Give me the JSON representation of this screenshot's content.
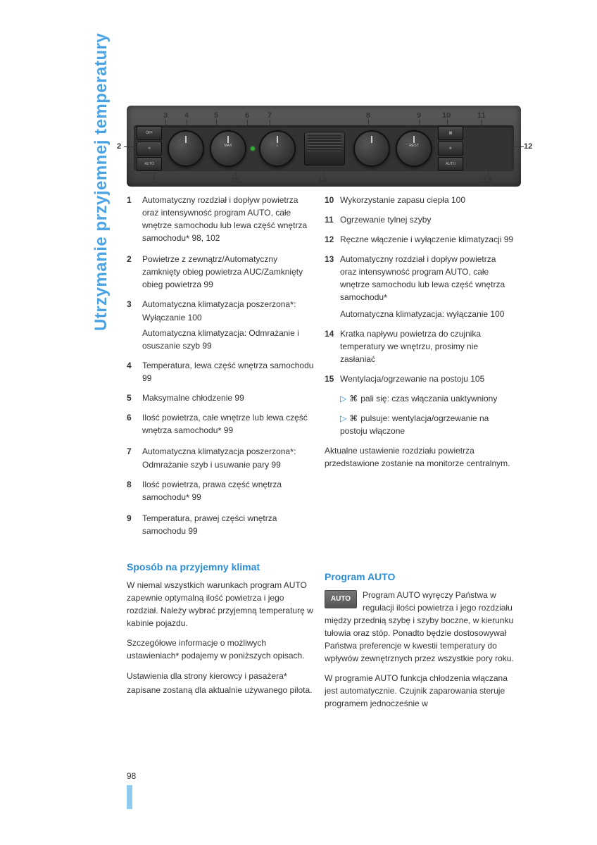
{
  "side_title": "Utrzymanie przyjemnej temperatury",
  "page_number": "98",
  "diagram": {
    "callouts_top": [
      "3",
      "4",
      "5",
      "6",
      "7",
      "8",
      "9",
      "10",
      "11"
    ],
    "callouts_left": [
      "2"
    ],
    "callouts_right": [
      "12"
    ],
    "callouts_bottom": [
      "1",
      "15",
      "14",
      "13"
    ],
    "auto_btn": "AUTO",
    "off_btn": "OFF",
    "max_label": "MAX",
    "rest_label": "REST"
  },
  "left_items": [
    {
      "n": "1",
      "t": "Automatyczny rozdział i dopływ powietrza oraz intensywność program AUTO, całe wnętrze samochodu lub lewa część wnętrza samochodu",
      "star": true,
      "refs": "  98, 102"
    },
    {
      "n": "2",
      "t": "Powietrze z zewnątrz/Automatyczny zamknięty obieg powietrza AUC/Zamknięty obieg powietrza",
      "refs": "  99"
    },
    {
      "n": "3",
      "t": "Automatyczna klimatyzacja poszerzona",
      "star": true,
      "after": ": Wyłączanie  100",
      "extra": "Automatyczna klimatyzacja: Odmrażanie i osuszanie szyb  99"
    },
    {
      "n": "4",
      "t": "Temperatura, lewa część wnętrza samochodu",
      "refs": "  99"
    },
    {
      "n": "5",
      "t": "Maksymalne chłodzenie",
      "refs": "  99"
    },
    {
      "n": "6",
      "t": "Ilość powietrza, całe wnętrze lub lewa część wnętrza samochodu",
      "star": true,
      "refs": "  99"
    },
    {
      "n": "7",
      "t": "Automatyczna klimatyzacja poszerzona",
      "star": true,
      "after": ": Odmrażanie szyb i usuwanie pary  99"
    },
    {
      "n": "8",
      "t": "Ilość powietrza, prawa część wnętrza samochodu",
      "star": true,
      "refs": "  99"
    },
    {
      "n": "9",
      "t": "Temperatura, prawej części wnętrza samochodu",
      "refs": "  99"
    }
  ],
  "right_items": [
    {
      "n": "10",
      "t": "Wykorzystanie zapasu ciepła",
      "refs": "  100"
    },
    {
      "n": "11",
      "t": "Ogrzewanie tylnej szyby"
    },
    {
      "n": "12",
      "t": "Ręczne włączenie i wyłączenie klimatyzacji",
      "refs": "  99"
    },
    {
      "n": "13",
      "t": "Automatyczny rozdział i dopływ powietrza oraz intensywność program AUTO, całe wnętrze samochodu lub lewa część wnętrza samochodu",
      "star": true,
      "extra": "Automatyczna klimatyzacja: wyłączanie  100"
    },
    {
      "n": "14",
      "t": "Kratka napływu powietrza do czujnika temperatury we wnętrzu, prosimy nie zasłaniać"
    },
    {
      "n": "15",
      "t": "Wentylacja/ogrzewanie na postoju",
      "refs": "  105"
    }
  ],
  "bullets": [
    "pali się: czas włączania uaktywniony",
    "pulsuje: wentylacja/ogrzewanie na postoju włączone"
  ],
  "right_para": "Aktualne ustawienie rozdziału powietrza przedstawione zostanie na monitorze centralnym.",
  "section_left_title": "Sposób na przyjemny klimat",
  "section_left_p1": "W niemal wszystkich warunkach program AUTO zapewnie optymalną ilość powietrza i jego rozdział. Należy wybrać przyjemną temperaturę w kabinie pojazdu.",
  "section_left_p2_a": "Szczegółowe informacje o możliwych ustawieniach podajemy w poniższych opisach.",
  "section_left_p2_star": "",
  "section_left_p3_a": "Ustawienia dla strony kierowcy i pasażera",
  "section_left_p3_b": " zapisane zostaną dla aktualnie używanego pilota.",
  "section_right_title": "Program AUTO",
  "auto_badge": "AUTO",
  "section_right_p1": "Program AUTO wyręczy Państwa w regulacji ilości powietrza i jego rozdziału między przednią szybę i szyby boczne, w kierunku tułowia oraz stóp. Ponadto będzie dostosowywał Państwa preferencje w kwestii temperatury do wpływów zewnętrznych przez wszystkie pory roku.",
  "section_right_p2": "W programie AUTO funkcja chłodzenia włączana jest automatycznie. Czujnik zaparowania steruje programem jednocześnie w"
}
